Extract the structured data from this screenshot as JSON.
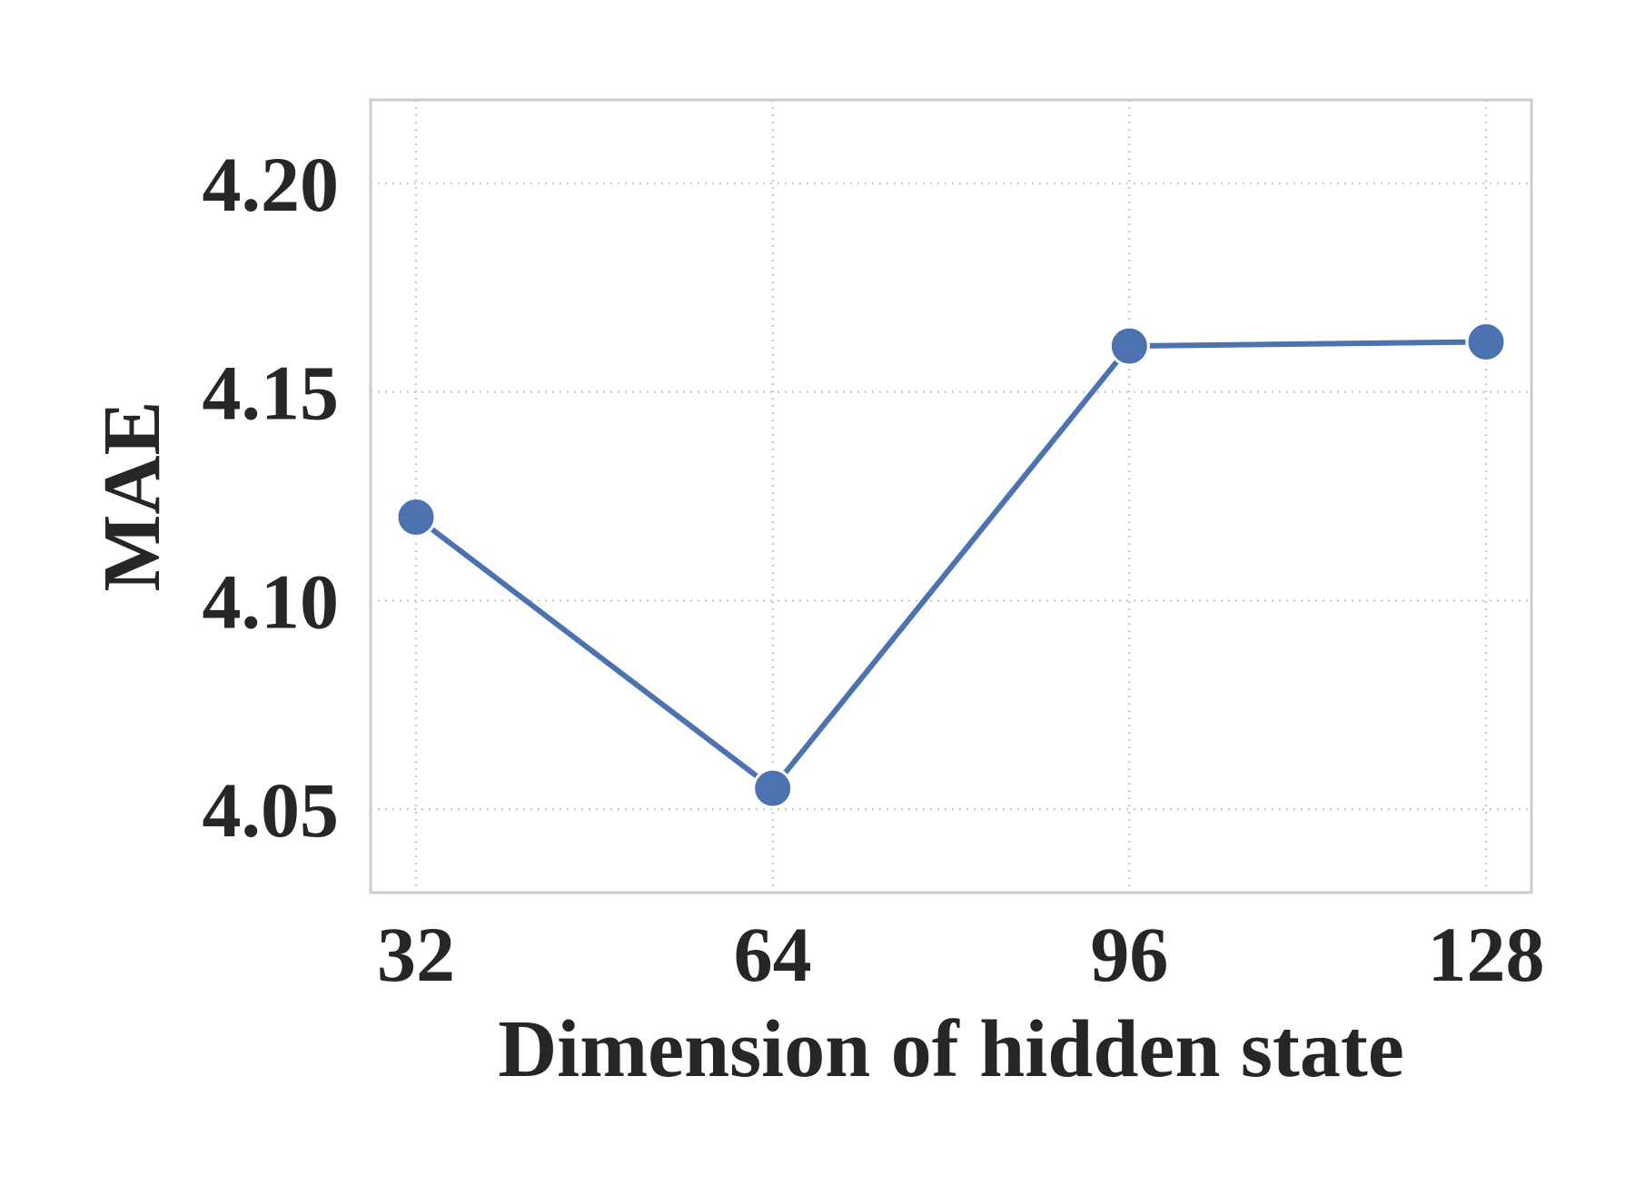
{
  "chart_data": {
    "type": "line",
    "title": "",
    "xlabel": "Dimension of hidden state",
    "ylabel": "MAE",
    "x": [
      32,
      64,
      96,
      128
    ],
    "x_tick_labels": [
      "32",
      "64",
      "96",
      "128"
    ],
    "y_ticks": [
      4.05,
      4.1,
      4.15,
      4.2
    ],
    "y_tick_labels": [
      "4.05",
      "4.10",
      "4.15",
      "4.20"
    ],
    "ylim": [
      4.03,
      4.22
    ],
    "grid": true,
    "legend": "none",
    "series": [
      {
        "values": [
          4.12,
          4.055,
          4.161,
          4.162
        ],
        "color": "#4C72B0"
      }
    ],
    "colors": {
      "line": "#4C72B0",
      "grid": "#cccccc",
      "frame": "#cccccc",
      "text": "#262626"
    }
  }
}
